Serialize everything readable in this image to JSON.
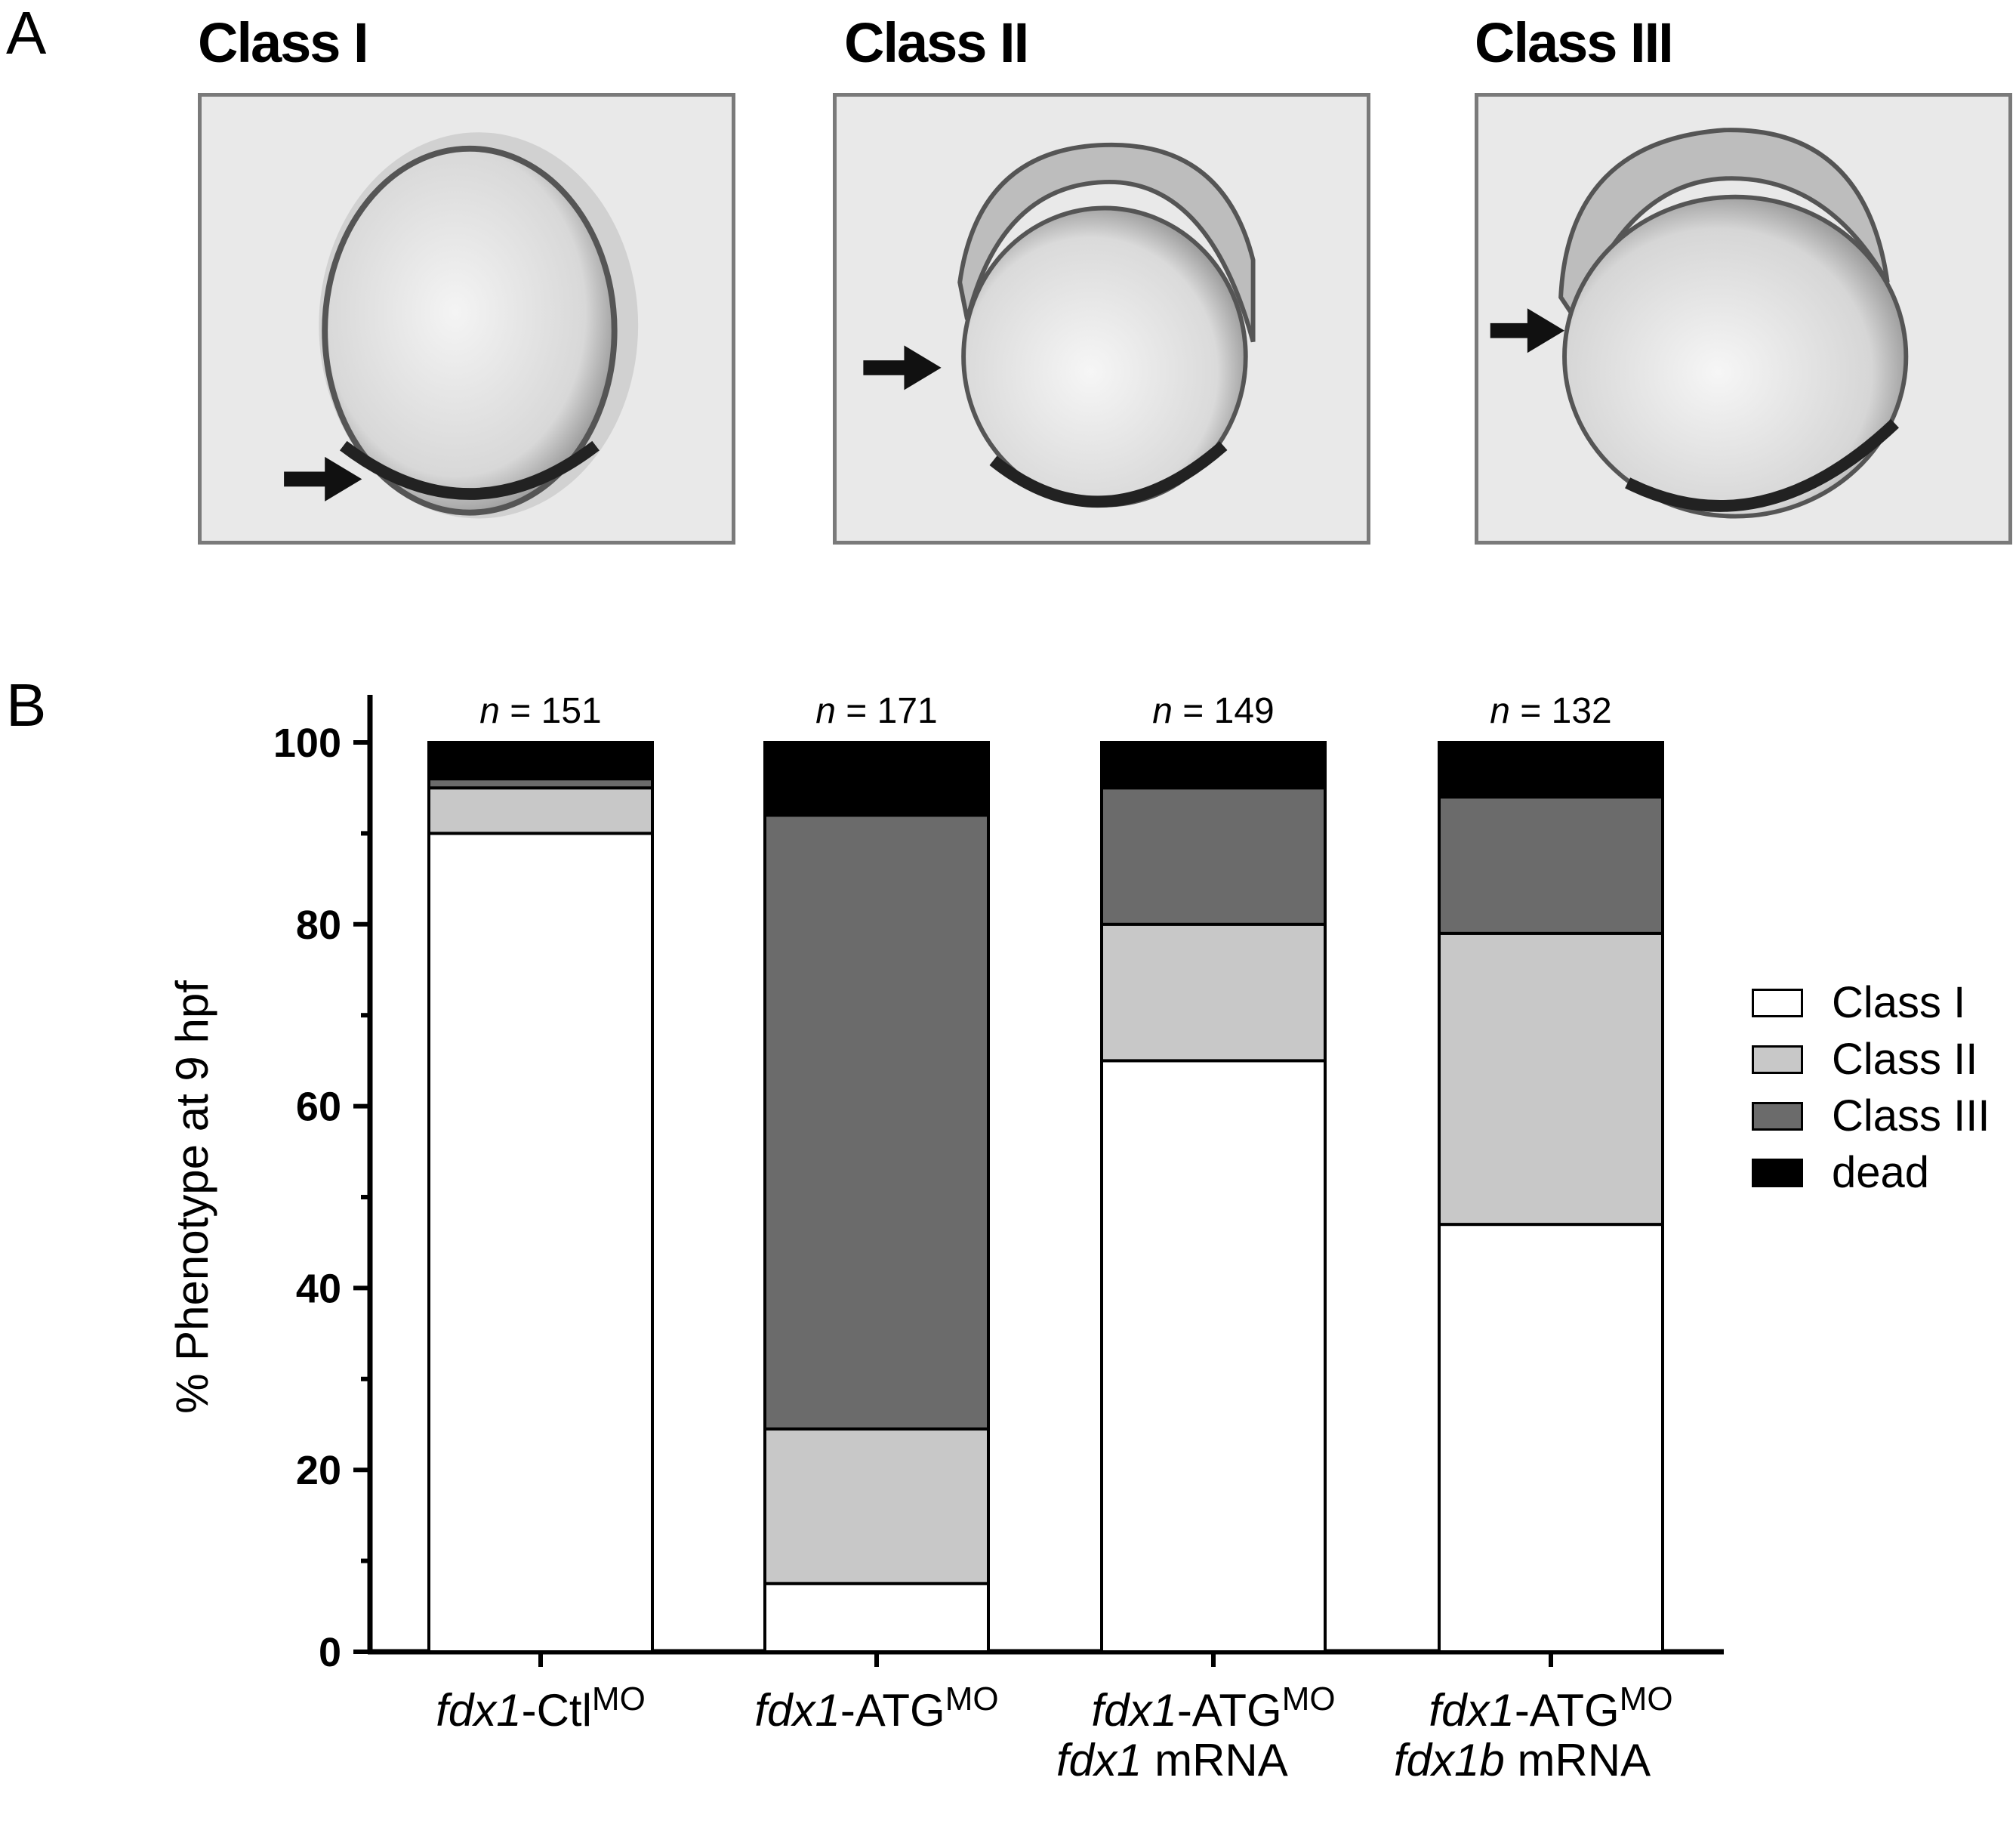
{
  "panel_a": {
    "letter": "A",
    "classes": [
      {
        "title": "Class I"
      },
      {
        "title": "Class II"
      },
      {
        "title": "Class III"
      }
    ]
  },
  "panel_b": {
    "letter": "B"
  },
  "chart_data": {
    "type": "bar",
    "stacked": true,
    "ylabel": "% Phenotype at 9 hpf",
    "ylim": [
      0,
      100
    ],
    "yticks": [
      0,
      20,
      40,
      60,
      80,
      100
    ],
    "categories": [
      {
        "line1_italic": "fdx1",
        "line1_rest": "-Ctl",
        "sup": "MO",
        "line2_italic": "",
        "line2_rest": "",
        "n_label": "n",
        "n_value": "= 151"
      },
      {
        "line1_italic": "fdx1",
        "line1_rest": "-ATG",
        "sup": "MO",
        "line2_italic": "",
        "line2_rest": "",
        "n_label": "n",
        "n_value": "= 171"
      },
      {
        "line1_italic": "fdx1",
        "line1_rest": "-ATG",
        "sup": "MO",
        "line2_italic": "fdx1",
        "line2_rest": " mRNA",
        "n_label": "n",
        "n_value": "= 149"
      },
      {
        "line1_italic": "fdx1",
        "line1_rest": "-ATG",
        "sup": "MO",
        "line2_italic": "fdx1b",
        "line2_rest": " mRNA",
        "n_label": "n",
        "n_value": "= 132"
      }
    ],
    "series": [
      {
        "name": "Class I",
        "color": "#ffffff",
        "values": [
          90,
          7.5,
          65,
          47
        ]
      },
      {
        "name": "Class II",
        "color": "#c8c8c8",
        "values": [
          5,
          17,
          15,
          32
        ]
      },
      {
        "name": "Class III",
        "color": "#6b6b6b",
        "values": [
          1,
          67.5,
          15,
          15
        ]
      },
      {
        "name": "dead",
        "color": "#000000",
        "values": [
          4,
          8,
          5,
          6
        ]
      }
    ],
    "legend_position": "right"
  }
}
